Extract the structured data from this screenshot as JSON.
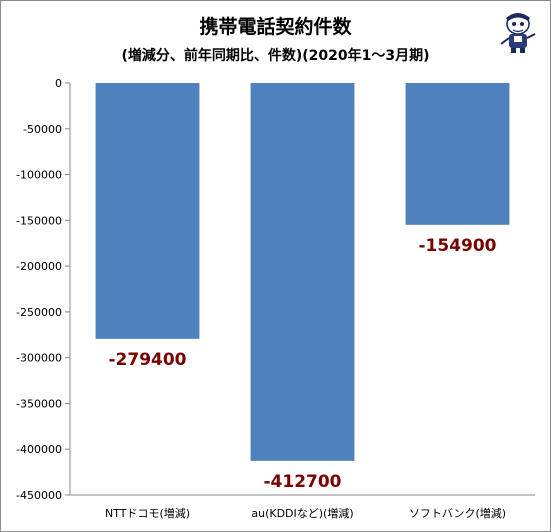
{
  "chart_data": {
    "type": "bar",
    "title": "携帯電話契約件数",
    "subtitle": "(増減分、前年同期比、件数)(2020年1～3月期)",
    "xlabel": "",
    "ylabel": "",
    "categories": [
      "NTTドコモ(増減)",
      "au(KDDIなど)(増減)",
      "ソフトバンク(増減)"
    ],
    "values": [
      -279400,
      -412700,
      -154900
    ],
    "data_labels": [
      "-279400",
      "-412700",
      "-154900"
    ],
    "ylim": [
      -450000,
      0
    ],
    "yticks": [
      0,
      -50000,
      -100000,
      -150000,
      -200000,
      -250000,
      -300000,
      -350000,
      -400000,
      -450000
    ],
    "ytick_labels": [
      "0",
      "-50000",
      "-100000",
      "-150000",
      "-200000",
      "-250000",
      "-300000",
      "-350000",
      "-400000",
      "-450000"
    ],
    "grid": false,
    "bar_color": "#4f81bd",
    "label_color": "#7a0000"
  },
  "mascot": {
    "icon": "mascot-character-icon"
  }
}
